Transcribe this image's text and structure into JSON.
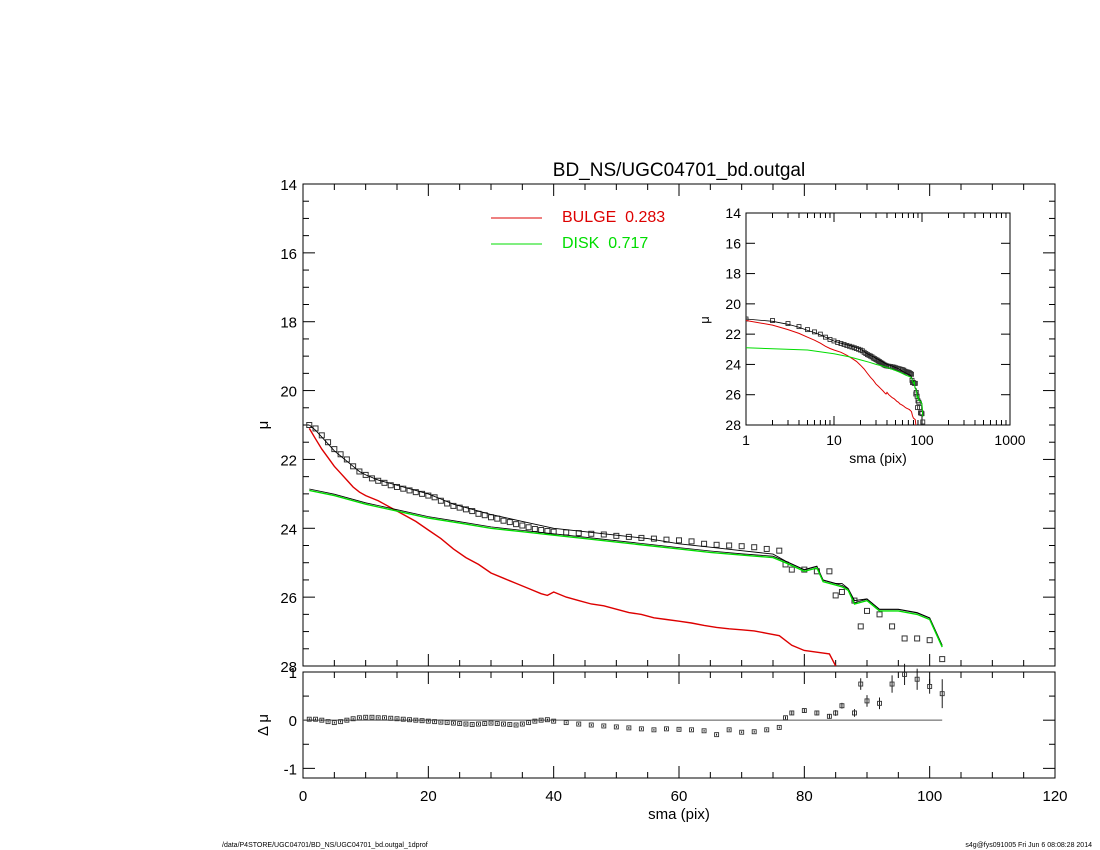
{
  "chart_data": [
    {
      "type": "scatter",
      "title": "BD_NS/UGC04701_bd.outgal",
      "xlabel": "",
      "ylabel": "μ",
      "xlim": [
        0,
        120
      ],
      "ylim": [
        28,
        14
      ],
      "y_inverted": true,
      "yticks": [
        "14",
        "16",
        "18",
        "20",
        "22",
        "24",
        "26",
        "28"
      ],
      "legend": {
        "placement": "top-center",
        "entries": [
          {
            "label": "BULGE  0.283",
            "color": "#dd0000"
          },
          {
            "label": "DISK  0.717",
            "color": "#00dd00"
          }
        ]
      },
      "series": [
        {
          "role": "data",
          "marker": "open-square",
          "color": "#000000",
          "x": [
            1,
            2,
            3,
            4,
            5,
            6,
            7,
            8,
            9,
            10,
            11,
            12,
            13,
            14,
            15,
            16,
            17,
            18,
            19,
            20,
            21,
            22,
            23,
            24,
            25,
            26,
            27,
            28,
            29,
            30,
            31,
            32,
            33,
            34,
            35,
            36,
            37,
            38,
            39,
            40,
            42,
            44,
            46,
            48,
            50,
            52,
            54,
            56,
            58,
            60,
            62,
            64,
            66,
            68,
            70,
            72,
            74,
            76,
            77,
            78,
            80,
            82,
            84,
            85,
            86,
            88,
            89,
            90,
            92,
            94,
            96,
            98,
            100,
            102
          ],
          "y": [
            21.0,
            21.1,
            21.3,
            21.5,
            21.7,
            21.85,
            22.0,
            22.2,
            22.35,
            22.45,
            22.55,
            22.62,
            22.68,
            22.75,
            22.8,
            22.85,
            22.9,
            22.95,
            23.0,
            23.05,
            23.1,
            23.2,
            23.28,
            23.35,
            23.4,
            23.45,
            23.5,
            23.58,
            23.62,
            23.68,
            23.72,
            23.78,
            23.82,
            23.88,
            23.92,
            23.97,
            24.02,
            24.05,
            24.08,
            24.1,
            24.12,
            24.14,
            24.16,
            24.18,
            24.22,
            24.25,
            24.28,
            24.3,
            24.33,
            24.35,
            24.38,
            24.45,
            24.48,
            24.5,
            24.52,
            24.55,
            24.6,
            24.65,
            25.05,
            25.2,
            25.2,
            25.25,
            25.25,
            25.95,
            25.85,
            26.1,
            26.85,
            26.4,
            26.5,
            26.85,
            27.2,
            27.2,
            27.25,
            27.8
          ]
        },
        {
          "role": "total-model",
          "color": "#000000",
          "x": [
            1,
            2,
            3,
            4,
            5,
            6,
            7,
            8,
            9,
            10,
            12,
            14,
            16,
            18,
            20,
            22,
            24,
            26,
            28,
            30,
            35,
            40,
            45,
            50,
            55,
            60,
            65,
            70,
            75,
            77,
            80,
            82,
            83,
            85,
            86,
            87,
            88,
            90,
            92,
            95,
            98,
            100,
            102
          ],
          "y": [
            21.0,
            21.15,
            21.35,
            21.55,
            21.75,
            21.9,
            22.05,
            22.2,
            22.35,
            22.45,
            22.6,
            22.7,
            22.8,
            22.9,
            23.0,
            23.15,
            23.3,
            23.4,
            23.5,
            23.6,
            23.8,
            24.0,
            24.1,
            24.2,
            24.3,
            24.45,
            24.55,
            24.65,
            24.75,
            24.95,
            25.2,
            25.1,
            25.5,
            25.6,
            25.6,
            25.75,
            26.1,
            26.05,
            26.35,
            26.35,
            26.45,
            26.6,
            27.4
          ]
        },
        {
          "role": "bulge",
          "name": "BULGE",
          "color": "#dd0000",
          "x": [
            1,
            2,
            3,
            4,
            5,
            6,
            7,
            8,
            9,
            10,
            12,
            14,
            16,
            18,
            20,
            22,
            24,
            26,
            28,
            30,
            32,
            34,
            36,
            38,
            39,
            40,
            42,
            44,
            46,
            48,
            50,
            52,
            54,
            56,
            58,
            60,
            62,
            64,
            66,
            68,
            70,
            72,
            74,
            76,
            78,
            80,
            82,
            84,
            85
          ],
          "y": [
            21.1,
            21.4,
            21.7,
            21.95,
            22.2,
            22.4,
            22.6,
            22.8,
            22.95,
            23.05,
            23.2,
            23.4,
            23.6,
            23.8,
            24.05,
            24.3,
            24.6,
            24.85,
            25.05,
            25.3,
            25.45,
            25.6,
            25.75,
            25.9,
            25.95,
            25.85,
            26.0,
            26.1,
            26.2,
            26.25,
            26.35,
            26.45,
            26.5,
            26.6,
            26.65,
            26.7,
            26.75,
            26.82,
            26.88,
            26.92,
            26.95,
            26.98,
            27.05,
            27.12,
            27.4,
            27.55,
            27.6,
            27.65,
            28.0
          ]
        },
        {
          "role": "disk",
          "name": "DISK",
          "color": "#00dd00",
          "x": [
            1,
            5,
            10,
            15,
            20,
            25,
            30,
            35,
            40,
            45,
            50,
            55,
            60,
            65,
            70,
            75,
            77,
            80,
            82,
            83,
            85,
            86,
            87,
            88,
            90,
            92,
            95,
            98,
            100,
            102
          ],
          "y": [
            22.9,
            23.05,
            23.3,
            23.5,
            23.7,
            23.85,
            24.0,
            24.1,
            24.2,
            24.3,
            24.4,
            24.5,
            24.6,
            24.7,
            24.78,
            24.85,
            25.0,
            25.25,
            25.15,
            25.55,
            25.65,
            25.7,
            25.8,
            26.2,
            26.1,
            26.4,
            26.4,
            26.5,
            26.65,
            27.45
          ]
        }
      ]
    },
    {
      "type": "scatter",
      "title": "",
      "xlabel": "sma (pix)",
      "ylabel": "Δ μ",
      "xlim": [
        0,
        120
      ],
      "ylim": [
        -1.2,
        1.0
      ],
      "yticks": [
        "1",
        "0",
        "-1"
      ],
      "xticks": [
        "0",
        "20",
        "40",
        "60",
        "80",
        "100",
        "120"
      ],
      "series": [
        {
          "role": "residual",
          "marker": "open-square-with-errorbar",
          "color": "#000000",
          "x": [
            1,
            2,
            3,
            4,
            5,
            6,
            7,
            8,
            9,
            10,
            11,
            12,
            13,
            14,
            15,
            16,
            17,
            18,
            19,
            20,
            21,
            22,
            23,
            24,
            25,
            26,
            27,
            28,
            29,
            30,
            31,
            32,
            33,
            34,
            35,
            36,
            37,
            38,
            39,
            40,
            42,
            44,
            46,
            48,
            50,
            52,
            54,
            56,
            58,
            60,
            62,
            64,
            66,
            68,
            70,
            72,
            74,
            76,
            77,
            78,
            80,
            82,
            84,
            85,
            86,
            88,
            89,
            90,
            92,
            94,
            96,
            98,
            100,
            102
          ],
          "y": [
            0.02,
            0.02,
            0.0,
            -0.03,
            -0.05,
            -0.03,
            0.0,
            0.03,
            0.05,
            0.06,
            0.06,
            0.05,
            0.05,
            0.04,
            0.03,
            0.02,
            0.01,
            0.0,
            -0.01,
            -0.02,
            -0.03,
            -0.04,
            -0.05,
            -0.06,
            -0.07,
            -0.08,
            -0.09,
            -0.08,
            -0.07,
            -0.06,
            -0.07,
            -0.08,
            -0.09,
            -0.1,
            -0.08,
            -0.05,
            -0.02,
            0.0,
            0.01,
            -0.02,
            -0.05,
            -0.08,
            -0.1,
            -0.12,
            -0.14,
            -0.16,
            -0.18,
            -0.2,
            -0.18,
            -0.19,
            -0.2,
            -0.22,
            -0.3,
            -0.2,
            -0.25,
            -0.24,
            -0.2,
            -0.15,
            0.05,
            0.15,
            0.2,
            0.15,
            0.08,
            0.15,
            0.3,
            0.15,
            0.75,
            0.4,
            0.35,
            0.75,
            0.95,
            0.85,
            0.7,
            0.55
          ],
          "err": [
            0.02,
            0.02,
            0.02,
            0.02,
            0.02,
            0.02,
            0.02,
            0.02,
            0.02,
            0.02,
            0.02,
            0.02,
            0.02,
            0.02,
            0.02,
            0.02,
            0.02,
            0.02,
            0.02,
            0.02,
            0.02,
            0.02,
            0.02,
            0.02,
            0.02,
            0.02,
            0.02,
            0.02,
            0.02,
            0.02,
            0.02,
            0.02,
            0.02,
            0.02,
            0.02,
            0.02,
            0.02,
            0.02,
            0.02,
            0.02,
            0.02,
            0.02,
            0.02,
            0.02,
            0.02,
            0.02,
            0.02,
            0.02,
            0.02,
            0.02,
            0.02,
            0.02,
            0.02,
            0.02,
            0.02,
            0.02,
            0.02,
            0.02,
            0.03,
            0.04,
            0.04,
            0.05,
            0.05,
            0.06,
            0.06,
            0.08,
            0.12,
            0.12,
            0.12,
            0.18,
            0.22,
            0.22,
            0.15,
            0.3
          ]
        }
      ],
      "zero_line": [
        0,
        102
      ]
    },
    {
      "type": "scatter",
      "title": "",
      "xlabel": "sma (pix)",
      "ylabel": "μ",
      "xscale": "log",
      "xlim": [
        1,
        1000
      ],
      "ylim": [
        28,
        14
      ],
      "y_inverted": true,
      "xticks": [
        "1",
        "10",
        "100",
        "1000"
      ],
      "yticks": [
        "14",
        "16",
        "18",
        "20",
        "22",
        "24",
        "26",
        "28"
      ],
      "placement": "inset-top-right"
    }
  ],
  "footer": {
    "left": "/data/P4STORE/UGC04701/BD_NS/UGC04701_bd.outgal_1dprof",
    "right": "s4g@fys091005  Fri Jun  6 08:08:28 2014"
  }
}
